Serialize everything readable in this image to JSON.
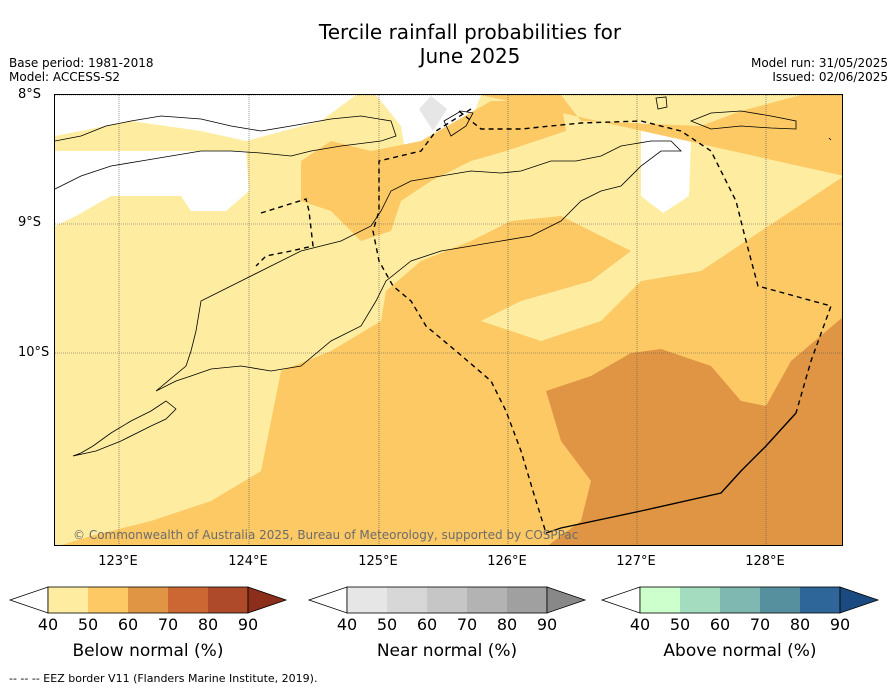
{
  "title": {
    "line1": "Tercile rainfall probabilities for",
    "line2": "June 2025"
  },
  "meta": {
    "base_period": "Base period: 1981-2018",
    "model": "Model: ACCESS-S2",
    "model_run": "Model run: 31/05/2025",
    "issued": "Issued: 02/06/2025"
  },
  "axes": {
    "lat_labels": [
      "8°S",
      "9°S",
      "10°S"
    ],
    "lon_labels": [
      "123°E",
      "124°E",
      "125°E",
      "126°E",
      "127°E",
      "128°E"
    ]
  },
  "map": {
    "copyright": "© Commonwealth of Australia 2025, Bureau of Meteorology, supported by COSPPac"
  },
  "colorbars": [
    {
      "label": "Below normal (%)",
      "ticks": [
        "40",
        "50",
        "60",
        "70",
        "80",
        "90"
      ],
      "colors": [
        "#ffffff",
        "#feeda0",
        "#fdc965",
        "#e09544",
        "#cc6633",
        "#ae4a29",
        "#8b2e1a"
      ]
    },
    {
      "label": "Near normal (%)",
      "ticks": [
        "40",
        "50",
        "60",
        "70",
        "80",
        "90"
      ],
      "colors": [
        "#ffffff",
        "#e6e6e6",
        "#d7d7d7",
        "#c6c6c6",
        "#b3b3b3",
        "#a0a0a0",
        "#888888"
      ]
    },
    {
      "label": "Above normal (%)",
      "ticks": [
        "40",
        "50",
        "60",
        "70",
        "80",
        "90"
      ],
      "colors": [
        "#ffffff",
        "#ccffcc",
        "#a4dcc0",
        "#7fb8b1",
        "#568f9e",
        "#2f6699",
        "#1a4a80"
      ]
    }
  ],
  "footer": "--  --  -- EEZ border V11 (Flanders Marine Institute, 2019)."
}
